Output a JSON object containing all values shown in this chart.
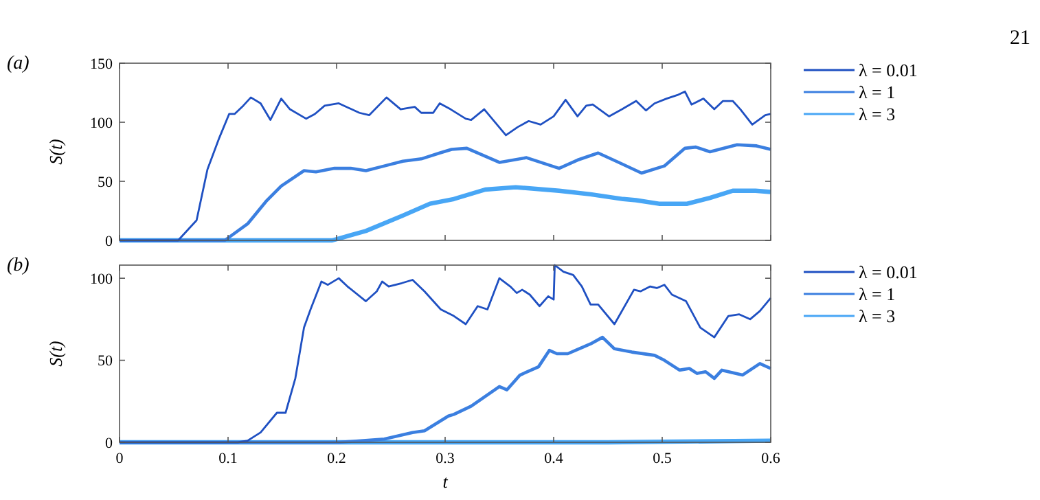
{
  "chart_data": [
    {
      "type": "line",
      "title": "(a)",
      "ylabel": "S(t)",
      "annotations": [
        "21"
      ],
      "xlim": [
        0,
        0.6
      ],
      "xticks": [
        0,
        0.1,
        0.2,
        0.3,
        0.4,
        0.5,
        0.6
      ],
      "ylim": [
        0,
        150
      ],
      "yticks": [
        0,
        50,
        100,
        150
      ],
      "tick_labels": "y",
      "legend": "right",
      "grid": false,
      "line_style": "solid",
      "marker": "none",
      "series": [
        {
          "name": "λ = 0.01",
          "color": "#1f50c2",
          "x": [
            0,
            0.054,
            0.071,
            0.081,
            0.092,
            0.101,
            0.106,
            0.114,
            0.121,
            0.13,
            0.139,
            0.149,
            0.157,
            0.172,
            0.18,
            0.189,
            0.202,
            0.221,
            0.23,
            0.246,
            0.259,
            0.272,
            0.278,
            0.289,
            0.295,
            0.305,
            0.319,
            0.324,
            0.336,
            0.356,
            0.367,
            0.377,
            0.388,
            0.4,
            0.411,
            0.422,
            0.43,
            0.436,
            0.451,
            0.463,
            0.476,
            0.485,
            0.493,
            0.504,
            0.514,
            0.521,
            0.527,
            0.538,
            0.548,
            0.556,
            0.565,
            0.572,
            0.583,
            0.595,
            0.6
          ],
          "values": [
            0,
            0,
            17,
            60,
            87,
            107,
            107,
            114,
            121,
            116,
            102,
            120,
            111,
            103,
            107,
            114,
            116,
            108,
            106,
            121,
            111,
            113,
            108,
            108,
            116,
            111,
            103,
            102,
            111,
            89,
            96,
            101,
            98,
            105,
            119,
            105,
            114,
            115,
            105,
            111,
            118,
            110,
            116,
            120,
            123,
            126,
            115,
            120,
            111,
            118,
            118,
            111,
            98,
            106,
            107
          ]
        },
        {
          "name": "λ = 1",
          "color": "#3b7fe0",
          "x": [
            0,
            0.097,
            0.118,
            0.135,
            0.149,
            0.17,
            0.181,
            0.198,
            0.213,
            0.227,
            0.244,
            0.261,
            0.278,
            0.295,
            0.306,
            0.32,
            0.35,
            0.375,
            0.405,
            0.422,
            0.441,
            0.46,
            0.481,
            0.502,
            0.521,
            0.531,
            0.544,
            0.569,
            0.587,
            0.6
          ],
          "values": [
            0,
            0,
            14,
            33,
            46,
            59,
            58,
            61,
            61,
            59,
            63,
            67,
            69,
            74,
            77,
            78,
            66,
            70,
            61,
            68,
            74,
            66,
            57,
            63,
            78,
            79,
            75,
            81,
            80,
            77
          ]
        },
        {
          "name": "λ = 3",
          "color": "#48a6f5",
          "x": [
            0,
            0.196,
            0.227,
            0.261,
            0.286,
            0.308,
            0.337,
            0.365,
            0.405,
            0.434,
            0.464,
            0.476,
            0.497,
            0.523,
            0.544,
            0.565,
            0.586,
            0.6
          ],
          "values": [
            0,
            0,
            8,
            21,
            31,
            35,
            43,
            45,
            42,
            39,
            35,
            34,
            31,
            31,
            36,
            42,
            42,
            41
          ]
        }
      ]
    },
    {
      "type": "line",
      "title": "(b)",
      "xlabel": "t",
      "ylabel": "S(t)",
      "xlim": [
        0,
        0.6
      ],
      "xticks": [
        0,
        0.1,
        0.2,
        0.3,
        0.4,
        0.5,
        0.6
      ],
      "ylim": [
        0,
        108
      ],
      "yticks": [
        0,
        50,
        100
      ],
      "legend": "right",
      "grid": false,
      "line_style": "solid",
      "marker": "none",
      "series": [
        {
          "name": "λ = 0.01",
          "color": "#1f50c2",
          "x": [
            0,
            0.109,
            0.118,
            0.13,
            0.145,
            0.153,
            0.162,
            0.17,
            0.176,
            0.186,
            0.192,
            0.202,
            0.21,
            0.227,
            0.237,
            0.242,
            0.248,
            0.26,
            0.27,
            0.281,
            0.296,
            0.308,
            0.319,
            0.33,
            0.339,
            0.35,
            0.36,
            0.366,
            0.371,
            0.378,
            0.387,
            0.395,
            0.4,
            0.401,
            0.409,
            0.418,
            0.426,
            0.434,
            0.441,
            0.456,
            0.474,
            0.48,
            0.489,
            0.495,
            0.502,
            0.509,
            0.522,
            0.535,
            0.548,
            0.561,
            0.571,
            0.581,
            0.59,
            0.6
          ],
          "values": [
            0,
            0,
            1,
            6,
            18,
            18,
            39,
            70,
            81,
            98,
            96,
            100,
            95,
            86,
            92,
            98,
            95,
            97,
            99,
            92,
            81,
            77,
            72,
            83,
            81,
            100,
            95,
            91,
            93,
            90,
            83,
            89,
            87,
            108,
            104,
            102,
            95,
            84,
            84,
            72,
            93,
            92,
            95,
            94,
            96,
            90,
            86,
            70,
            64,
            77,
            78,
            75,
            80,
            88
          ]
        },
        {
          "name": "λ = 1",
          "color": "#3b7fe0",
          "x": [
            0,
            0.202,
            0.244,
            0.27,
            0.281,
            0.303,
            0.308,
            0.324,
            0.337,
            0.35,
            0.357,
            0.369,
            0.386,
            0.396,
            0.403,
            0.413,
            0.434,
            0.445,
            0.456,
            0.472,
            0.493,
            0.502,
            0.516,
            0.525,
            0.532,
            0.54,
            0.548,
            0.555,
            0.574,
            0.59,
            0.6
          ],
          "values": [
            0,
            0,
            2,
            6,
            7,
            16,
            17,
            22,
            28,
            34,
            32,
            41,
            46,
            56,
            54,
            54,
            60,
            64,
            57,
            55,
            53,
            50,
            44,
            45,
            42,
            43,
            39,
            44,
            41,
            48,
            45
          ]
        },
        {
          "name": "λ = 3",
          "color": "#48a6f5",
          "x": [
            0,
            0.45,
            0.6
          ],
          "values": [
            0,
            0,
            1
          ]
        }
      ]
    }
  ]
}
